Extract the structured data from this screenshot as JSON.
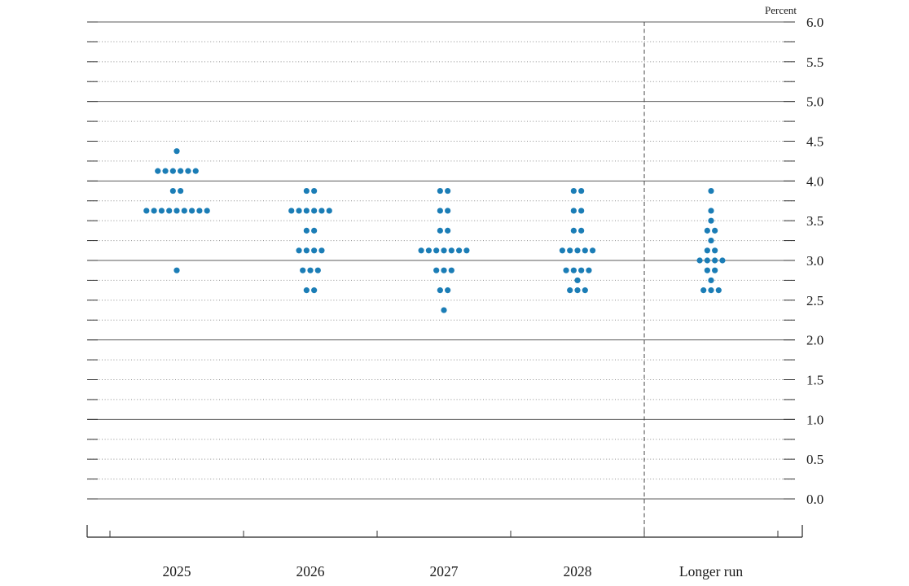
{
  "chart_data": {
    "type": "scatter",
    "variant": "fomc-dot-plot",
    "title": "",
    "unit_label": "Percent",
    "ylim": [
      0.0,
      6.0
    ],
    "y_grid_step": 0.25,
    "y_major_step": 1.0,
    "y_tick_label_step": 0.5,
    "y_tick_labels": [
      "6.0",
      "5.5",
      "5.0",
      "4.5",
      "4.0",
      "3.5",
      "3.0",
      "2.5",
      "2.0",
      "1.5",
      "1.0",
      "0.5",
      "0.0"
    ],
    "categories": [
      "2025",
      "2026",
      "2027",
      "2028",
      "Longer run"
    ],
    "separator_before_category": "Longer run",
    "grid_on": true,
    "legend": "none",
    "dot_color": "#1b7db6",
    "series": [
      {
        "category": "2025",
        "dots": [
          {
            "rate": 4.375,
            "count": 1
          },
          {
            "rate": 4.125,
            "count": 6
          },
          {
            "rate": 3.875,
            "count": 2
          },
          {
            "rate": 3.625,
            "count": 9
          },
          {
            "rate": 2.875,
            "count": 1
          }
        ]
      },
      {
        "category": "2026",
        "dots": [
          {
            "rate": 3.875,
            "count": 2
          },
          {
            "rate": 3.625,
            "count": 6
          },
          {
            "rate": 3.375,
            "count": 2
          },
          {
            "rate": 3.125,
            "count": 4
          },
          {
            "rate": 2.875,
            "count": 3
          },
          {
            "rate": 2.625,
            "count": 2
          }
        ]
      },
      {
        "category": "2027",
        "dots": [
          {
            "rate": 3.875,
            "count": 2
          },
          {
            "rate": 3.625,
            "count": 2
          },
          {
            "rate": 3.375,
            "count": 2
          },
          {
            "rate": 3.125,
            "count": 7
          },
          {
            "rate": 2.875,
            "count": 3
          },
          {
            "rate": 2.625,
            "count": 2
          },
          {
            "rate": 2.375,
            "count": 1
          }
        ]
      },
      {
        "category": "2028",
        "dots": [
          {
            "rate": 3.875,
            "count": 2
          },
          {
            "rate": 3.625,
            "count": 2
          },
          {
            "rate": 3.375,
            "count": 2
          },
          {
            "rate": 3.125,
            "count": 5
          },
          {
            "rate": 2.875,
            "count": 4
          },
          {
            "rate": 2.75,
            "count": 1
          },
          {
            "rate": 2.625,
            "count": 3
          }
        ]
      },
      {
        "category": "Longer run",
        "dots": [
          {
            "rate": 3.875,
            "count": 1
          },
          {
            "rate": 3.625,
            "count": 1
          },
          {
            "rate": 3.5,
            "count": 1
          },
          {
            "rate": 3.375,
            "count": 2
          },
          {
            "rate": 3.25,
            "count": 1
          },
          {
            "rate": 3.125,
            "count": 2
          },
          {
            "rate": 3.0,
            "count": 4
          },
          {
            "rate": 2.875,
            "count": 2
          },
          {
            "rate": 2.75,
            "count": 1
          },
          {
            "rate": 2.625,
            "count": 3
          }
        ]
      }
    ]
  }
}
